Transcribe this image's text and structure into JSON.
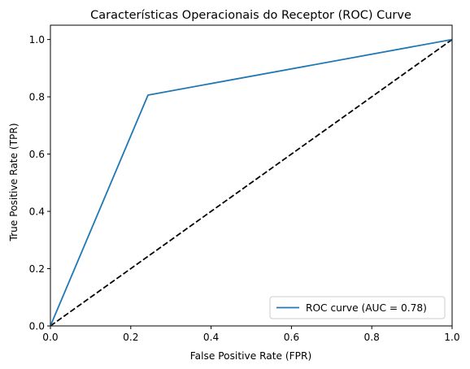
{
  "chart_data": {
    "type": "line",
    "title": "Características Operacionais do Receptor (ROC) Curve",
    "xlabel": "False Positive Rate (FPR)",
    "ylabel": "True Positive Rate (TPR)",
    "xlim": [
      0.0,
      1.0
    ],
    "ylim": [
      0.0,
      1.05
    ],
    "xticks": [
      "0.0",
      "0.2",
      "0.4",
      "0.6",
      "0.8",
      "1.0"
    ],
    "yticks": [
      "0.0",
      "0.2",
      "0.4",
      "0.6",
      "0.8",
      "1.0"
    ],
    "grid": false,
    "legend_position": "lower-right",
    "series": [
      {
        "name": "ROC curve (AUC = 0.78)",
        "color": "#1f77b4",
        "style": "solid",
        "x": [
          0.0,
          0.243,
          1.0
        ],
        "y": [
          0.0,
          0.806,
          1.0
        ]
      },
      {
        "color": "#000000",
        "style": "dashed",
        "x": [
          0.0,
          1.0
        ],
        "y": [
          0.0,
          1.0
        ]
      }
    ]
  }
}
